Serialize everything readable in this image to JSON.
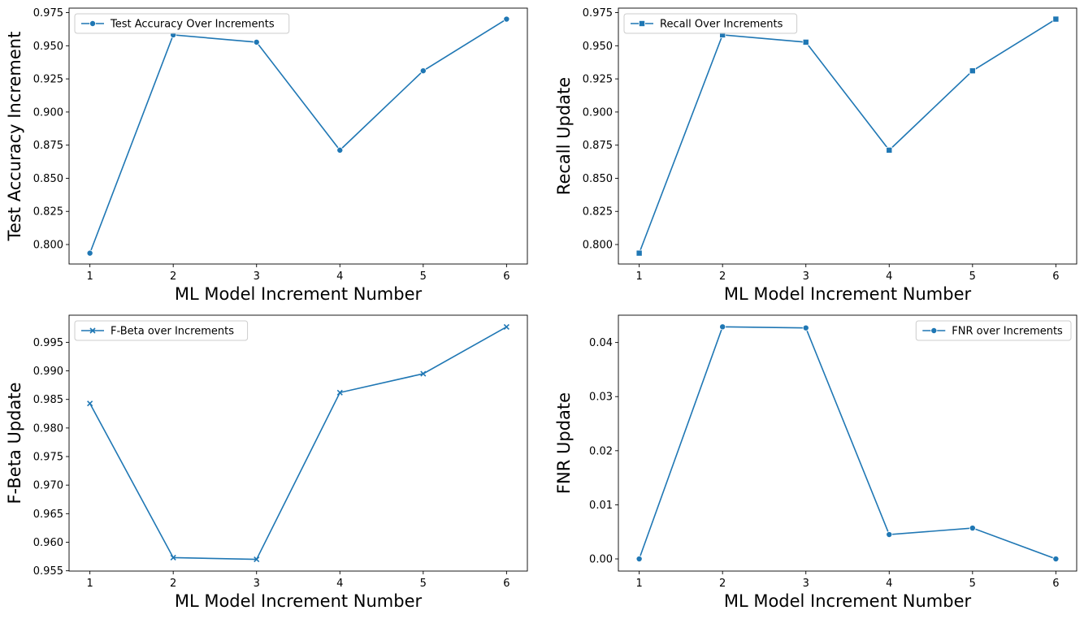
{
  "style": {
    "line_color": "#1f77b4",
    "axis_color": "#000000",
    "legend_border": "#cccccc"
  },
  "chart_data": [
    {
      "type": "line",
      "marker": "circle",
      "x": [
        1,
        2,
        3,
        4,
        5,
        6
      ],
      "series": [
        {
          "name": "Test Accuracy Over Increments",
          "values": [
            0.7935,
            0.9582,
            0.9527,
            0.8712,
            0.9311,
            0.9701
          ]
        }
      ],
      "xlabel": "ML Model Increment Number",
      "ylabel": "Test Accuracy Increment",
      "xlim": [
        0.75,
        6.25
      ],
      "ylim": [
        0.7853,
        0.9784
      ],
      "xticks": [
        "1",
        "2",
        "3",
        "4",
        "5",
        "6"
      ],
      "yticks": [
        0.8,
        0.825,
        0.85,
        0.875,
        0.9,
        0.925,
        0.95,
        0.975
      ],
      "ytick_labels": [
        "0.800",
        "0.825",
        "0.850",
        "0.875",
        "0.900",
        "0.925",
        "0.950",
        "0.975"
      ],
      "legend": "top-left",
      "grid": false
    },
    {
      "type": "line",
      "marker": "square",
      "x": [
        1,
        2,
        3,
        4,
        5,
        6
      ],
      "series": [
        {
          "name": "Recall Over Increments",
          "values": [
            0.7935,
            0.9582,
            0.9527,
            0.8712,
            0.9311,
            0.9701
          ]
        }
      ],
      "xlabel": "ML Model Increment Number",
      "ylabel": "Recall Update",
      "xlim": [
        0.75,
        6.25
      ],
      "ylim": [
        0.7853,
        0.9784
      ],
      "xticks": [
        "1",
        "2",
        "3",
        "4",
        "5",
        "6"
      ],
      "yticks": [
        0.8,
        0.825,
        0.85,
        0.875,
        0.9,
        0.925,
        0.95,
        0.975
      ],
      "ytick_labels": [
        "0.800",
        "0.825",
        "0.850",
        "0.875",
        "0.900",
        "0.925",
        "0.950",
        "0.975"
      ],
      "legend": "top-left",
      "grid": false
    },
    {
      "type": "line",
      "marker": "x",
      "x": [
        1,
        2,
        3,
        4,
        5,
        6
      ],
      "series": [
        {
          "name": "F-Beta over Increments",
          "values": [
            0.9843,
            0.9573,
            0.957,
            0.9862,
            0.9895,
            0.9977
          ]
        }
      ],
      "xlabel": "ML Model Increment Number",
      "ylabel": "F-Beta Update",
      "xlim": [
        0.75,
        6.25
      ],
      "ylim": [
        0.95495,
        0.99975
      ],
      "xticks": [
        "1",
        "2",
        "3",
        "4",
        "5",
        "6"
      ],
      "yticks": [
        0.955,
        0.96,
        0.965,
        0.97,
        0.975,
        0.98,
        0.985,
        0.99,
        0.995
      ],
      "ytick_labels": [
        "0.955",
        "0.960",
        "0.965",
        "0.970",
        "0.975",
        "0.980",
        "0.985",
        "0.990",
        "0.995"
      ],
      "legend": "top-left",
      "grid": false
    },
    {
      "type": "line",
      "marker": "circle",
      "x": [
        1,
        2,
        3,
        4,
        5,
        6
      ],
      "series": [
        {
          "name": "FNR over Increments",
          "values": [
            0.0,
            0.0429,
            0.0427,
            0.0045,
            0.0057,
            0.0
          ]
        }
      ],
      "xlabel": "ML Model Increment Number",
      "ylabel": "FNR Update",
      "xlim": [
        0.75,
        6.25
      ],
      "ylim": [
        -0.00225,
        0.04505
      ],
      "xticks": [
        "1",
        "2",
        "3",
        "4",
        "5",
        "6"
      ],
      "yticks": [
        0.0,
        0.01,
        0.02,
        0.03,
        0.04
      ],
      "ytick_labels": [
        "0.00",
        "0.01",
        "0.02",
        "0.03",
        "0.04"
      ],
      "legend": "top-right",
      "grid": false
    }
  ]
}
